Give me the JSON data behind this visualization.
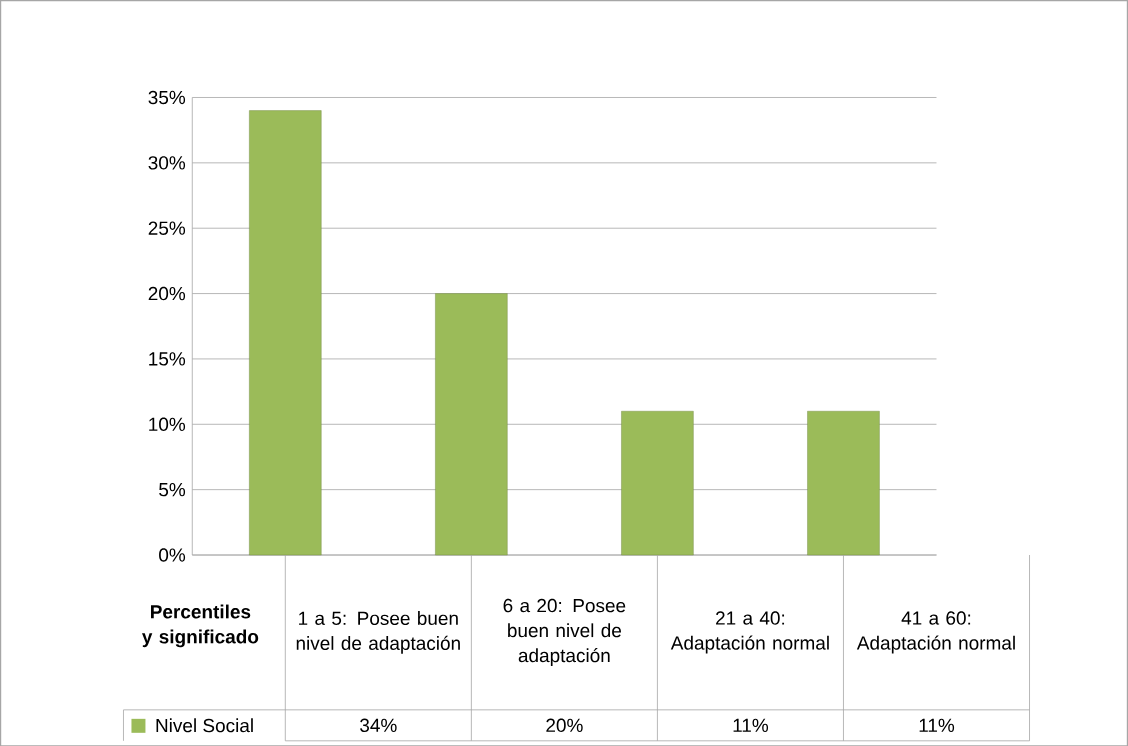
{
  "chart_data": {
    "type": "bar",
    "xlabel": "Percentiles y significado",
    "categories": [
      "1 a 5: Posee buen nivel de adaptación",
      "6 a 20: Posee buen nivel de adaptación",
      "21 a 40: Adaptación normal",
      "41 a 60: Adaptación normal"
    ],
    "series": [
      {
        "name": "Nivel Social",
        "color": "#9bbb59",
        "values": [
          34,
          20,
          11,
          11
        ],
        "value_labels": [
          "34%",
          "20%",
          "11%",
          "11%"
        ]
      }
    ],
    "ylim": [
      0,
      35
    ],
    "yticks": [
      {
        "value": 0,
        "label": "0%"
      },
      {
        "value": 5,
        "label": "5%"
      },
      {
        "value": 10,
        "label": "10%"
      },
      {
        "value": 15,
        "label": "15%"
      },
      {
        "value": 20,
        "label": "20%"
      },
      {
        "value": 25,
        "label": "25%"
      },
      {
        "value": 30,
        "label": "30%"
      },
      {
        "value": 35,
        "label": "35%"
      }
    ],
    "grid": "y",
    "legend": "bottom"
  }
}
